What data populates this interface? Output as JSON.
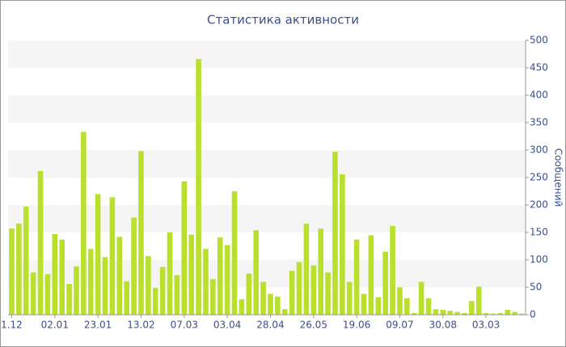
{
  "chart_data": {
    "type": "bar",
    "title": "Статистика активности",
    "y_axis_label": "Сообщений",
    "categories": [
      "1.12",
      null,
      null,
      null,
      null,
      null,
      "02.01",
      null,
      null,
      null,
      null,
      null,
      "23.01",
      null,
      null,
      null,
      null,
      null,
      "13.02",
      null,
      null,
      null,
      null,
      null,
      "07.03",
      null,
      null,
      null,
      null,
      null,
      "03.04",
      null,
      null,
      null,
      null,
      null,
      "28.04",
      null,
      null,
      null,
      null,
      null,
      "26.05",
      null,
      null,
      null,
      null,
      null,
      "19.06",
      null,
      null,
      null,
      null,
      null,
      "09.07",
      null,
      null,
      null,
      null,
      null,
      "30.08",
      null,
      null,
      null,
      null,
      null,
      "03.03",
      null,
      null,
      null,
      null,
      null
    ],
    "values": [
      157,
      166,
      197,
      77,
      262,
      74,
      147,
      137,
      56,
      88,
      333,
      120,
      220,
      105,
      214,
      142,
      61,
      177,
      298,
      107,
      49,
      87,
      150,
      72,
      243,
      146,
      466,
      120,
      65,
      141,
      127,
      225,
      28,
      75,
      154,
      60,
      38,
      33,
      10,
      80,
      96,
      166,
      90,
      157,
      77,
      297,
      256,
      60,
      137,
      38,
      145,
      32,
      115,
      162,
      50,
      30,
      3,
      60,
      30,
      10,
      9,
      7,
      5,
      3,
      25,
      51,
      3,
      2,
      3,
      9,
      5,
      2
    ],
    "color": "#b8e02c",
    "ylim": [
      0,
      500
    ],
    "yticks": [
      0,
      50,
      100,
      150,
      200,
      250,
      300,
      350,
      400,
      450,
      500
    ],
    "y_axis_side": "right",
    "striped_background": true
  }
}
